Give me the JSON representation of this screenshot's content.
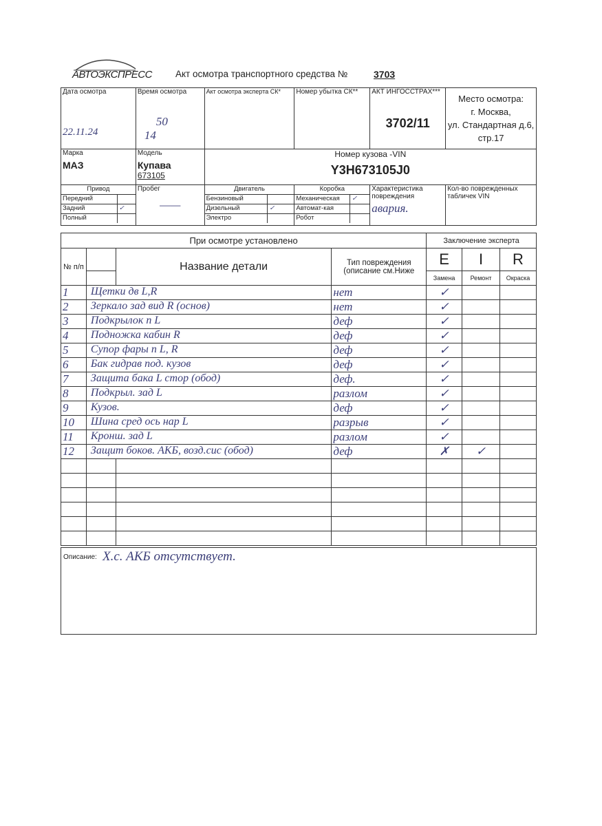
{
  "logo": "АВТОЭКСПРЕСС",
  "title": "Акт осмотра транспортного средства №",
  "act_number": "3703",
  "header": {
    "date_label": "Дата осмотра",
    "date_value": "22.11.24",
    "time_label": "Время осмотра",
    "time_value_h": "14",
    "time_value_m": "50",
    "expert_act_label": "Акт осмотра эксперта СК*",
    "loss_no_label": "Номер убытка СК**",
    "ingos_label": "АКТ ИНГОССТРАХ***",
    "ingos_value": "3702/11",
    "place_label": "Место осмотра:",
    "place_lines": [
      "г. Москва,",
      "ул. Стандартная д.6,",
      "стр.17"
    ],
    "brand_label": "Марка",
    "brand_value": "МАЗ",
    "model_label": "Модель",
    "model_value": "Купава",
    "model_value2": "673105",
    "vin_label": "Номер кузова -VIN",
    "vin_value": "Y3H673105J0",
    "drive_label": "Привод",
    "drive": [
      {
        "label": "Передний",
        "check": ""
      },
      {
        "label": "Задний",
        "check": "✓"
      },
      {
        "label": "Полный",
        "check": ""
      }
    ],
    "mileage_label": "Пробег",
    "mileage_value": "——",
    "engine_label": "Двигатель",
    "engine": [
      {
        "label": "Бензиновый",
        "check": ""
      },
      {
        "label": "Дизельный",
        "check": "✓"
      },
      {
        "label": "Электро",
        "check": ""
      }
    ],
    "gearbox_label": "Коробка",
    "gearbox": [
      {
        "label": "Механическая",
        "check": "✓"
      },
      {
        "label": "Автомат-кая",
        "check": ""
      },
      {
        "label": "Робот",
        "check": ""
      }
    ],
    "damage_char_label": "Характеристика повреждения",
    "damage_char_value": "авария.",
    "vin_plates_label": "Кол-во поврежденных табличек VIN"
  },
  "table": {
    "section_title": "При осмотре установлено",
    "expert_title": "Заключение эксперта",
    "col_no": "№ п/п",
    "col_name": "Название детали",
    "col_type": "Тип повреждения (описание см.Ниже",
    "col_e": "E",
    "col_i": "I",
    "col_r": "R",
    "col_e_sub": "Замена",
    "col_i_sub": "Ремонт",
    "col_r_sub": "Окраска",
    "rows": [
      {
        "no": "1",
        "name": "Щетки дв L,R",
        "type": "нет",
        "e": "✓",
        "i": "",
        "r": ""
      },
      {
        "no": "2",
        "name": "Зеркало зад вид R (основ)",
        "type": "нет",
        "e": "✓",
        "i": "",
        "r": ""
      },
      {
        "no": "3",
        "name": "Подкрылок п L",
        "type": "деф",
        "e": "✓",
        "i": "",
        "r": ""
      },
      {
        "no": "4",
        "name": "Подножка кабин R",
        "type": "деф",
        "e": "✓",
        "i": "",
        "r": ""
      },
      {
        "no": "5",
        "name": "Супор фары п L, R",
        "type": "деф",
        "e": "✓",
        "i": "",
        "r": ""
      },
      {
        "no": "6",
        "name": "Бак гидрав под. кузов",
        "type": "деф",
        "e": "✓",
        "i": "",
        "r": ""
      },
      {
        "no": "7",
        "name": "Защита бака L стор (обод)",
        "type": "деф.",
        "e": "✓",
        "i": "",
        "r": ""
      },
      {
        "no": "8",
        "name": "Подкрыл. зад L",
        "type": "разлом",
        "e": "✓",
        "i": "",
        "r": ""
      },
      {
        "no": "9",
        "name": "Кузов.",
        "type": "деф",
        "e": "✓",
        "i": "",
        "r": ""
      },
      {
        "no": "10",
        "name": "Шина сред ось нар L",
        "type": "разрыв",
        "e": "✓",
        "i": "",
        "r": ""
      },
      {
        "no": "11",
        "name": "Кронш. зад L",
        "type": "разлом",
        "e": "✓",
        "i": "",
        "r": ""
      },
      {
        "no": "12",
        "name": "Защит боков. АКБ, возд.сис (обод)",
        "type": "деф",
        "e": "✗",
        "i": "✓",
        "r": ""
      }
    ]
  },
  "description": {
    "label": "Описание:",
    "value": "Х.с. АКБ отсутствует."
  }
}
